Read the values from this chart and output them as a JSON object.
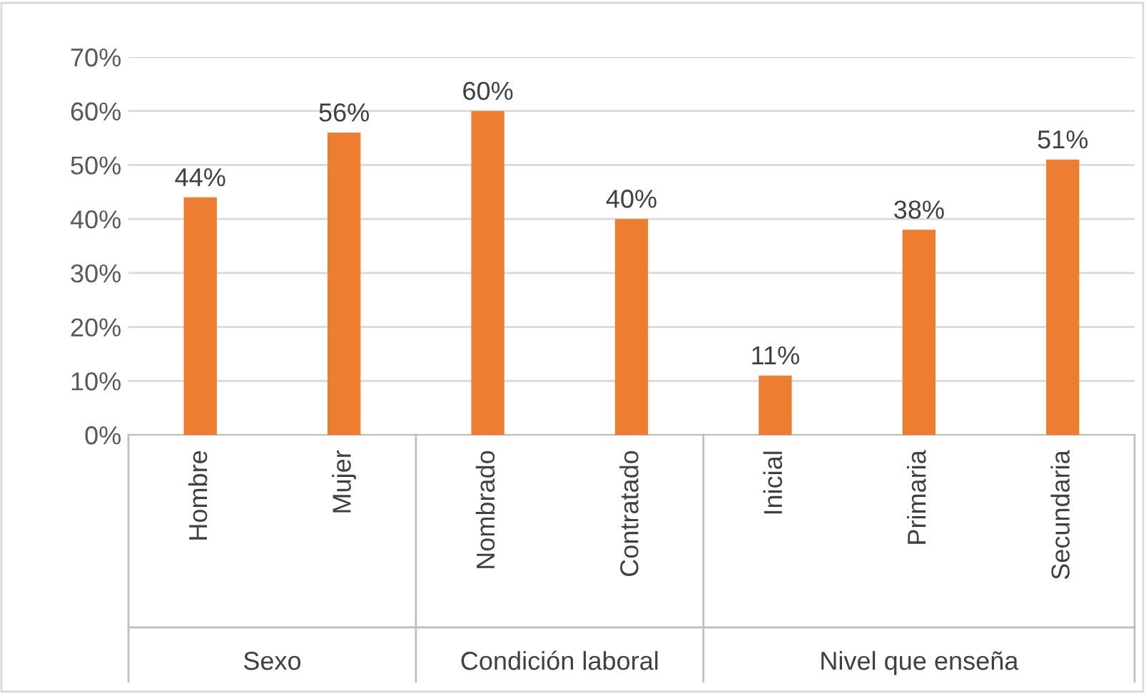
{
  "chart_data": {
    "type": "bar",
    "categories": [
      "Hombre",
      "Mujer",
      "Nombrado",
      "Contratado",
      "Inicial",
      "Primaria",
      "Secundaria"
    ],
    "values": [
      44,
      56,
      60,
      40,
      11,
      38,
      51
    ],
    "value_labels": [
      "44%",
      "56%",
      "60%",
      "40%",
      "11%",
      "38%",
      "51%"
    ],
    "color": "#ed7d31",
    "ylim": [
      0,
      70
    ],
    "yticks": [
      {
        "value": 0,
        "label": "0%"
      },
      {
        "value": 10,
        "label": "10%"
      },
      {
        "value": 20,
        "label": "20%"
      },
      {
        "value": 30,
        "label": "30%"
      },
      {
        "value": 40,
        "label": "40%"
      },
      {
        "value": 50,
        "label": "50%"
      },
      {
        "value": 60,
        "label": "60%"
      },
      {
        "value": 70,
        "label": "70%"
      }
    ],
    "annotations": [
      "Sexo",
      "Condición laboral",
      "Nivel que enseña"
    ],
    "grid": "y",
    "legend": false
  }
}
